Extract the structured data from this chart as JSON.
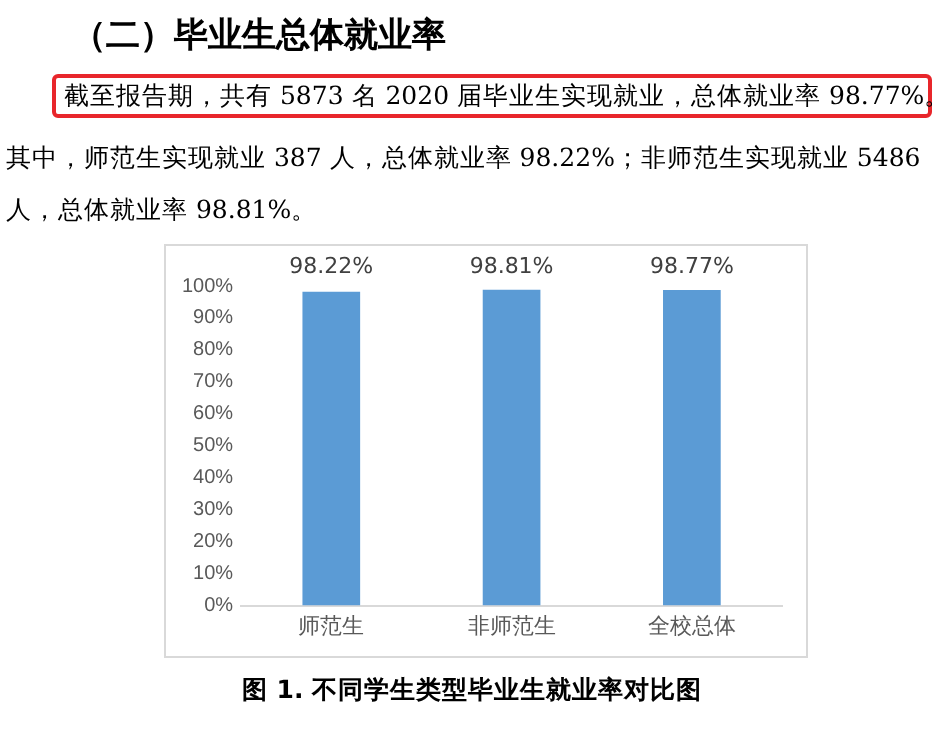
{
  "chart_data": {
    "type": "bar",
    "title": "（二）毕业生总体就业率",
    "annotations": [
      "截至报告期，共有 5873 名 2020 届毕业生实现就业，总体就业率 98.77%。",
      "其中，师范生实现就业 387 人，总体就业率 98.22%；非师范生实现就业 5486 人，总体就业率 98.81%。",
      "图 1. 不同学生类型毕业生就业率对比图"
    ],
    "categories": [
      "师范生",
      "非师范生",
      "全校总体"
    ],
    "values": [
      98.22,
      98.81,
      98.77
    ],
    "value_labels": [
      "98.22%",
      "98.81%",
      "98.77%"
    ],
    "color": "#5b9bd5",
    "ylim": [
      0,
      100
    ],
    "yticks": [
      {
        "value": 0,
        "label": "0%"
      },
      {
        "value": 10,
        "label": "10%"
      },
      {
        "value": 20,
        "label": "20%"
      },
      {
        "value": 30,
        "label": "30%"
      },
      {
        "value": 40,
        "label": "40%"
      },
      {
        "value": 50,
        "label": "50%"
      },
      {
        "value": 60,
        "label": "60%"
      },
      {
        "value": 70,
        "label": "70%"
      },
      {
        "value": 80,
        "label": "80%"
      },
      {
        "value": 90,
        "label": "90%"
      },
      {
        "value": 100,
        "label": "100%"
      }
    ],
    "grid": false,
    "legend": false
  }
}
